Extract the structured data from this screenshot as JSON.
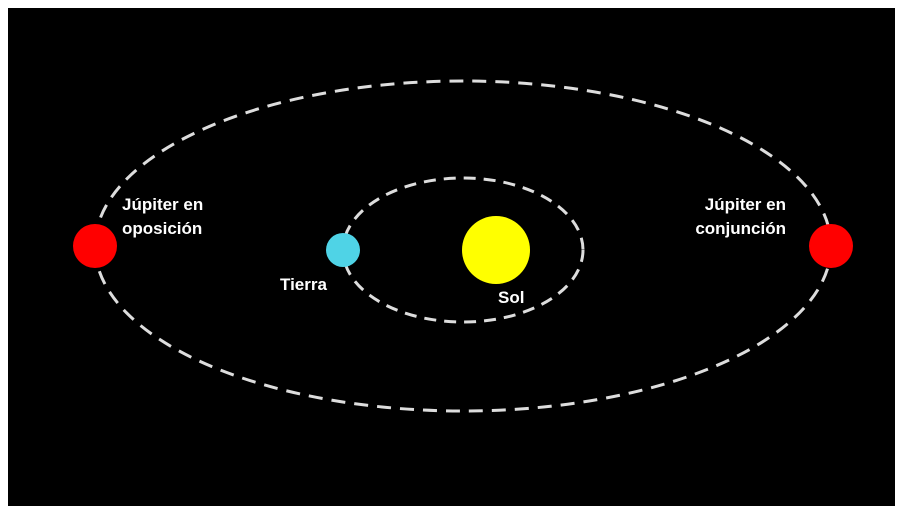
{
  "labels": {
    "jupiter_opposition": [
      "Júpiter en",
      "oposición"
    ],
    "jupiter_conjunction": [
      "Júpiter en",
      "conjunción"
    ],
    "earth": "Tierra",
    "sun": "Sol"
  }
}
